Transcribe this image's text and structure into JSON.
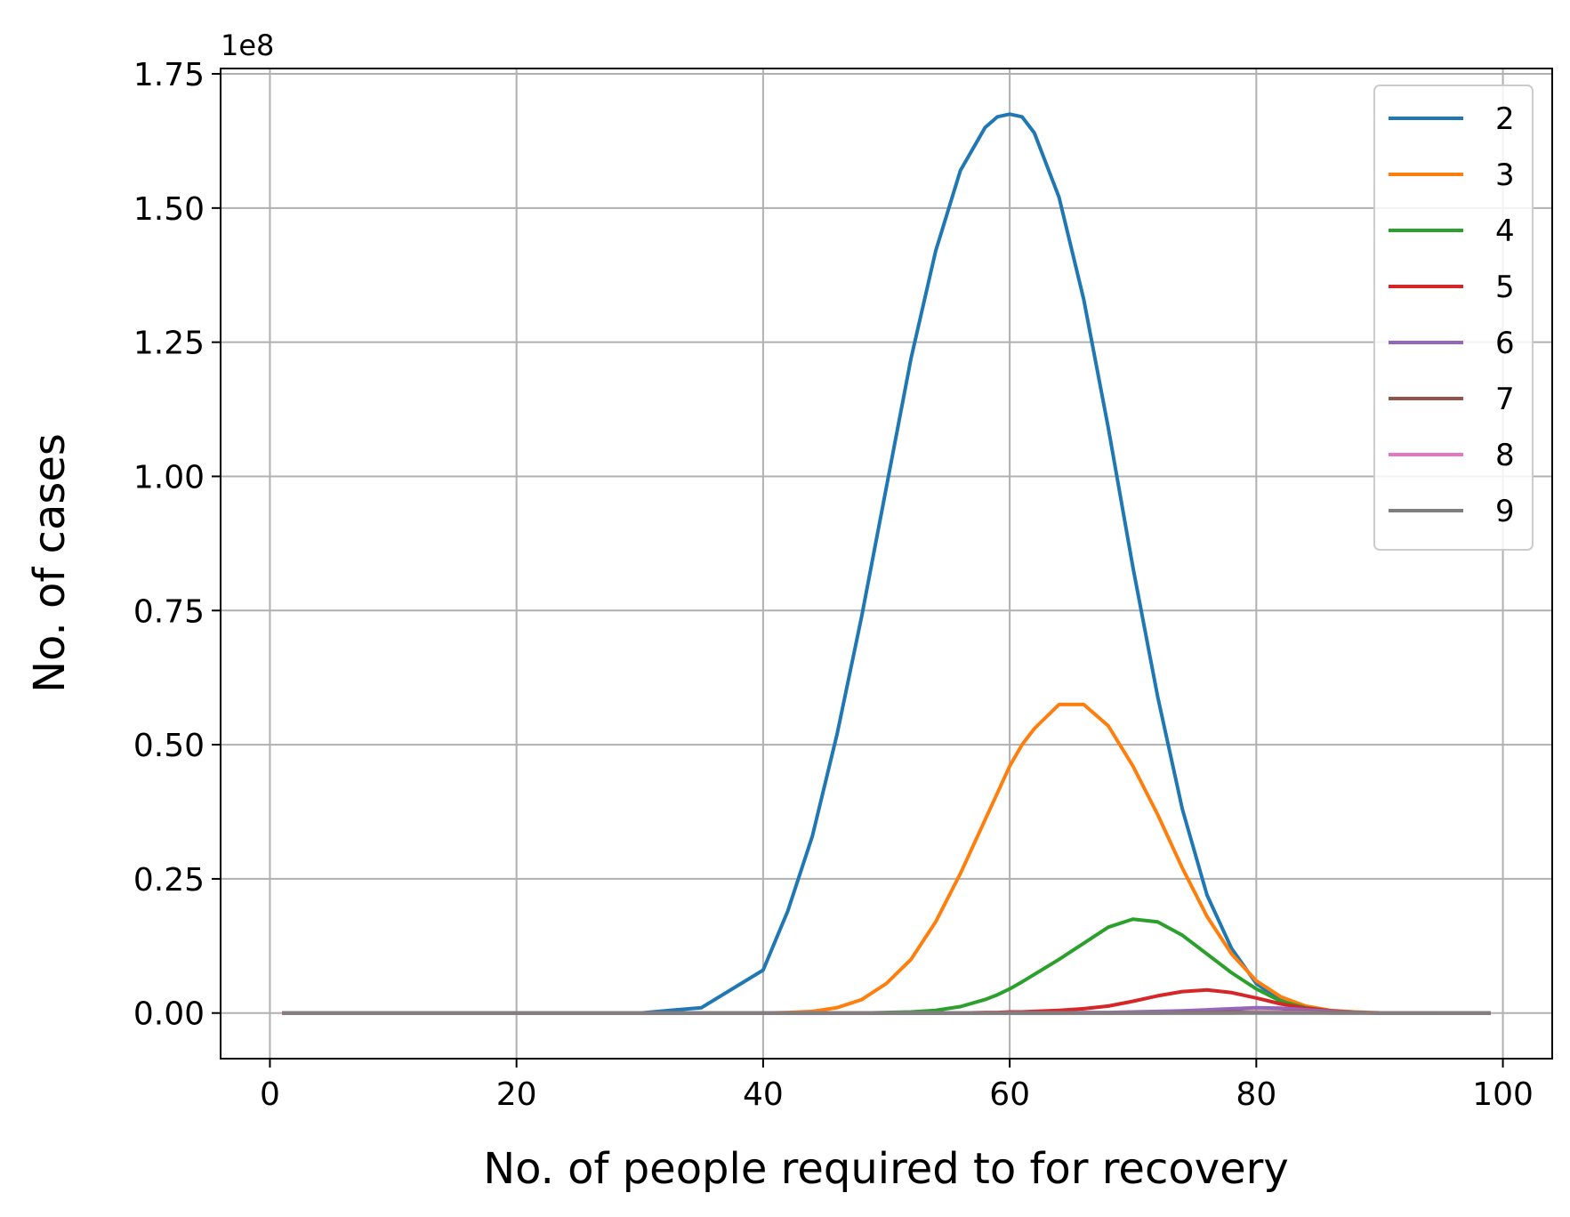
{
  "chart_data": {
    "type": "line",
    "title": "",
    "xlabel": "No. of people required to for recovery",
    "ylabel": "No. of cases",
    "y_offset_label": "1e8",
    "xlim": [
      -4,
      104
    ],
    "ylim": [
      -0.085,
      1.76
    ],
    "x_ticks": [
      0,
      20,
      40,
      60,
      80,
      100
    ],
    "x_tick_labels": [
      "0",
      "20",
      "40",
      "60",
      "80",
      "100"
    ],
    "y_ticks": [
      0,
      0.25,
      0.5,
      0.75,
      1.0,
      1.25,
      1.5,
      1.75
    ],
    "y_tick_labels": [
      "0.00",
      "0.25",
      "0.50",
      "0.75",
      "1.00",
      "1.25",
      "1.50",
      "1.75"
    ],
    "grid": true,
    "legend_position": "upper-right",
    "x": [
      1,
      30,
      35,
      40,
      42,
      44,
      46,
      48,
      50,
      52,
      54,
      56,
      58,
      59,
      60,
      61,
      62,
      64,
      66,
      68,
      70,
      72,
      74,
      76,
      78,
      80,
      82,
      84,
      86,
      88,
      90,
      95,
      99
    ],
    "series": [
      {
        "name": "2",
        "color": "#1f77b4",
        "values": [
          0,
          0,
          0.01,
          0.08,
          0.19,
          0.33,
          0.52,
          0.74,
          0.98,
          1.22,
          1.42,
          1.57,
          1.65,
          1.67,
          1.675,
          1.67,
          1.64,
          1.52,
          1.33,
          1.09,
          0.83,
          0.59,
          0.38,
          0.22,
          0.12,
          0.055,
          0.023,
          0.008,
          0.002,
          0.0005,
          0,
          0,
          0
        ]
      },
      {
        "name": "3",
        "color": "#ff7f0e",
        "values": [
          0,
          0,
          0,
          0,
          0.001,
          0.003,
          0.01,
          0.025,
          0.055,
          0.1,
          0.17,
          0.26,
          0.36,
          0.41,
          0.46,
          0.5,
          0.53,
          0.575,
          0.575,
          0.535,
          0.46,
          0.37,
          0.27,
          0.18,
          0.11,
          0.06,
          0.03,
          0.013,
          0.005,
          0.002,
          0.0005,
          0,
          0
        ]
      },
      {
        "name": "4",
        "color": "#2ca02c",
        "values": [
          0,
          0,
          0,
          0,
          0,
          0,
          0,
          0,
          0.001,
          0.002,
          0.005,
          0.012,
          0.025,
          0.034,
          0.045,
          0.058,
          0.072,
          0.1,
          0.13,
          0.16,
          0.175,
          0.17,
          0.145,
          0.11,
          0.075,
          0.045,
          0.022,
          0.01,
          0.004,
          0.001,
          0,
          0,
          0
        ]
      },
      {
        "name": "5",
        "color": "#d62728",
        "values": [
          0,
          0,
          0,
          0,
          0,
          0,
          0,
          0,
          0,
          0,
          0,
          0,
          0.001,
          0.001,
          0.002,
          0.002,
          0.003,
          0.005,
          0.008,
          0.013,
          0.022,
          0.032,
          0.04,
          0.043,
          0.038,
          0.028,
          0.017,
          0.009,
          0.004,
          0.001,
          0,
          0,
          0
        ]
      },
      {
        "name": "6",
        "color": "#9467bd",
        "values": [
          0,
          0,
          0,
          0,
          0,
          0,
          0,
          0,
          0,
          0,
          0,
          0,
          0,
          0,
          0,
          0,
          0,
          0,
          0.001,
          0.001,
          0.002,
          0.003,
          0.004,
          0.006,
          0.008,
          0.01,
          0.009,
          0.006,
          0.003,
          0.001,
          0,
          0,
          0
        ]
      },
      {
        "name": "7",
        "color": "#8c564b",
        "values": [
          0,
          0,
          0,
          0,
          0,
          0,
          0,
          0,
          0,
          0,
          0,
          0,
          0,
          0,
          0,
          0,
          0,
          0,
          0,
          0,
          0,
          0,
          0.001,
          0.001,
          0.002,
          0.002,
          0.002,
          0.002,
          0.001,
          0.001,
          0,
          0,
          0
        ]
      },
      {
        "name": "8",
        "color": "#e377c2",
        "values": [
          0,
          0,
          0,
          0,
          0,
          0,
          0,
          0,
          0,
          0,
          0,
          0,
          0,
          0,
          0,
          0,
          0,
          0,
          0,
          0,
          0,
          0,
          0,
          0,
          0,
          0.001,
          0.001,
          0.001,
          0,
          0,
          0,
          0,
          0
        ]
      },
      {
        "name": "9",
        "color": "#7f7f7f",
        "values": [
          0,
          0,
          0,
          0,
          0,
          0,
          0,
          0,
          0,
          0,
          0,
          0,
          0,
          0,
          0,
          0,
          0,
          0,
          0,
          0,
          0,
          0,
          0,
          0,
          0,
          0,
          0,
          0,
          0,
          0,
          0,
          0,
          0
        ]
      }
    ]
  }
}
